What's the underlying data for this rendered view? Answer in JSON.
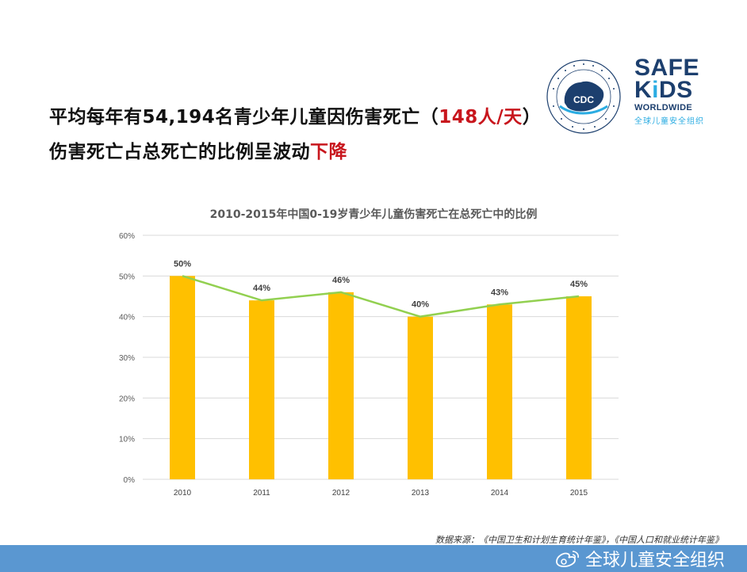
{
  "headline": {
    "line1_prefix": "平均每年有54,194名青少年儿童因伤害死亡（",
    "line1_highlight": "148人/天",
    "line1_suffix": "）",
    "line2_prefix": "伤害死亡占总死亡的比例呈波动",
    "line2_highlight": "下降"
  },
  "logos": {
    "cdc_text": "CDC",
    "safekids_line1": "SAFE",
    "safekids_line2_a": "K",
    "safekids_line2_b": "i",
    "safekids_line2_c": "DS",
    "safekids_line3": "WORLDWIDE",
    "safekids_cn": "全球儿童安全组织"
  },
  "chart_data": {
    "type": "bar",
    "title": "2010-2015年中国0-19岁青少年儿童伤害死亡在总死亡中的比例",
    "categories": [
      "2010",
      "2011",
      "2012",
      "2013",
      "2014",
      "2015"
    ],
    "values": [
      50,
      44,
      46,
      40,
      43,
      45
    ],
    "data_labels": [
      "50%",
      "44%",
      "46%",
      "40%",
      "43%",
      "45%"
    ],
    "overlay_line": true,
    "ylim": [
      0,
      60
    ],
    "yticks": [
      "0%",
      "10%",
      "20%",
      "30%",
      "40%",
      "50%",
      "60%"
    ],
    "ytick_values": [
      0,
      10,
      20,
      30,
      40,
      50,
      60
    ],
    "grid": true,
    "xlabel": "",
    "ylabel": "",
    "bar_color": "#ffc000",
    "line_color": "#92d050",
    "grid_color": "#d9d9d9"
  },
  "source": "数据来源：《中国卫生和计划生育统计年鉴》，《中国人口和就业统计年鉴》",
  "footer": {
    "weibo_label": "全球儿童安全组织",
    "color": "#5a97d1"
  }
}
